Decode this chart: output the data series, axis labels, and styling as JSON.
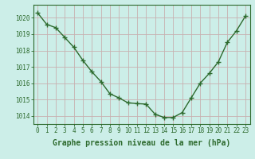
{
  "x": [
    0,
    1,
    2,
    3,
    4,
    5,
    6,
    7,
    8,
    9,
    10,
    11,
    12,
    13,
    14,
    15,
    16,
    17,
    18,
    19,
    20,
    21,
    22,
    23
  ],
  "y": [
    1020.3,
    1019.6,
    1019.4,
    1018.8,
    1018.2,
    1017.4,
    1016.7,
    1016.1,
    1015.35,
    1015.1,
    1014.8,
    1014.75,
    1014.72,
    1014.1,
    1013.9,
    1013.9,
    1014.2,
    1015.1,
    1016.0,
    1016.6,
    1017.3,
    1018.5,
    1019.2,
    1020.1
  ],
  "line_color": "#2d6a2d",
  "marker": "P",
  "marker_size": 2.8,
  "line_width": 1.0,
  "bg_color": "#cceee8",
  "grid_color": "#c8b0b0",
  "xlabel": "Graphe pression niveau de la mer (hPa)",
  "xlabel_fontsize": 7.0,
  "xlabel_color": "#2d6a2d",
  "ytick_labels": [
    "1014",
    "1015",
    "1016",
    "1017",
    "1018",
    "1019",
    "1020"
  ],
  "ylim": [
    1013.5,
    1020.8
  ],
  "xlim": [
    -0.5,
    23.5
  ],
  "yticks": [
    1014,
    1015,
    1016,
    1017,
    1018,
    1019,
    1020
  ],
  "xtick_labels": [
    "0",
    "1",
    "2",
    "3",
    "4",
    "5",
    "6",
    "7",
    "8",
    "9",
    "10",
    "11",
    "12",
    "13",
    "14",
    "15",
    "16",
    "17",
    "18",
    "19",
    "20",
    "21",
    "22",
    "23"
  ],
  "tick_fontsize": 5.5,
  "tick_color": "#2d6a2d",
  "spine_color": "#2d6a2d"
}
